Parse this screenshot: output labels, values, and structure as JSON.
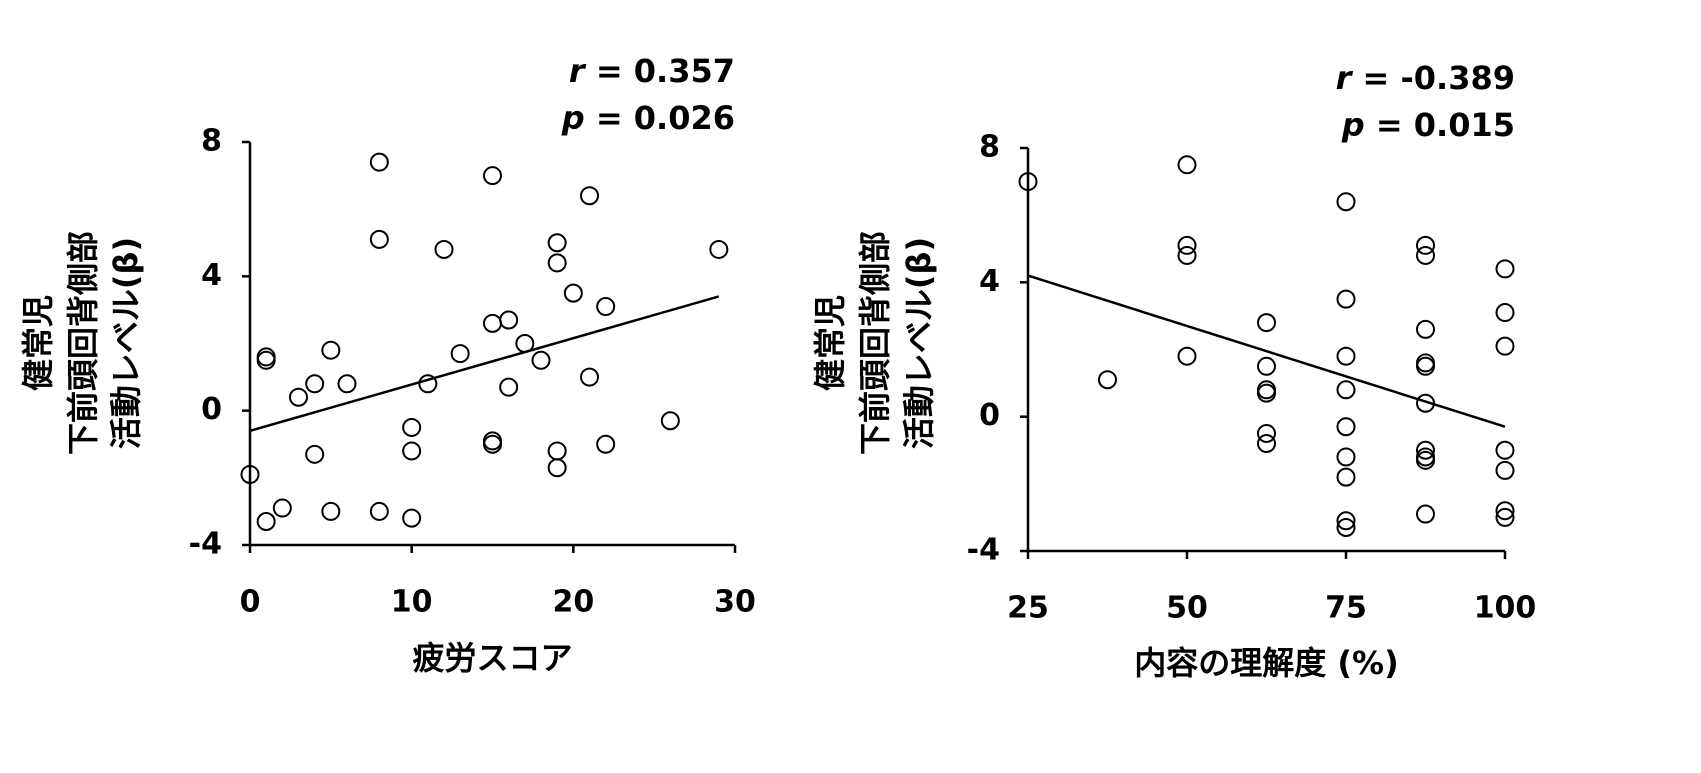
{
  "chart_data": [
    {
      "type": "scatter",
      "y_label": [
        "健常児",
        "下前頭回背側部",
        "活動レベル(β)"
      ],
      "x_label": "疲労スコア",
      "annotations": [
        {
          "var": "r",
          "text": " = 0.357"
        },
        {
          "var": "p",
          "text": " = 0.026"
        }
      ],
      "x": [
        0,
        1,
        1,
        1,
        2,
        3,
        4,
        4,
        5,
        5,
        6,
        8,
        8,
        8,
        10,
        10,
        10,
        11,
        12,
        13,
        15,
        15,
        15,
        15,
        16,
        16,
        17,
        18,
        19,
        19,
        19,
        19,
        20,
        21,
        21,
        22,
        22,
        26,
        29
      ],
      "values": [
        -1.9,
        -3.3,
        1.6,
        1.5,
        -2.9,
        0.4,
        0.8,
        -1.3,
        1.8,
        -3.0,
        0.8,
        7.4,
        5.1,
        -3.0,
        -0.5,
        -1.2,
        -3.2,
        0.8,
        4.8,
        1.7,
        7.0,
        2.6,
        -0.9,
        -1.0,
        2.7,
        0.7,
        2.0,
        1.5,
        5.0,
        4.4,
        -1.2,
        -1.7,
        3.5,
        6.4,
        1.0,
        3.1,
        -1.0,
        -0.3,
        4.8
      ],
      "color": "#000000",
      "trend_line": {
        "x": [
          0,
          29
        ],
        "y": [
          -0.6,
          3.4
        ]
      },
      "xlim": [
        0,
        30
      ],
      "xticks": [
        0,
        10,
        20,
        30
      ],
      "ylim": [
        -4,
        8
      ],
      "yticks": [
        -4,
        0,
        4,
        8
      ]
    },
    {
      "type": "scatter",
      "y_label": [
        "健常児",
        "下前頭回背側部",
        "活動レベル(β)"
      ],
      "x_label": "内容の理解度 (%)",
      "annotations": [
        {
          "var": "r",
          "text": " = -0.389"
        },
        {
          "var": "p",
          "text": " = 0.015"
        }
      ],
      "x": [
        25,
        37.5,
        50,
        50,
        50,
        50,
        62.5,
        62.5,
        62.5,
        62.5,
        62.5,
        62.5,
        75,
        75,
        75,
        75,
        75,
        75,
        75,
        75,
        75,
        87.5,
        87.5,
        87.5,
        87.5,
        87.5,
        87.5,
        87.5,
        87.5,
        87.5,
        87.5,
        100,
        100,
        100,
        100,
        100,
        100,
        100
      ],
      "values": [
        7.0,
        1.1,
        7.5,
        5.1,
        4.8,
        1.8,
        2.8,
        1.5,
        0.8,
        0.7,
        -0.5,
        -0.8,
        6.4,
        3.5,
        1.8,
        0.8,
        -0.3,
        -1.2,
        -1.8,
        -3.1,
        -3.3,
        5.1,
        4.8,
        2.6,
        1.6,
        1.5,
        0.4,
        -1.0,
        -1.2,
        -1.3,
        -2.9,
        4.4,
        3.1,
        2.1,
        -1.0,
        -1.6,
        -2.8,
        -3.0
      ],
      "color": "#000000",
      "trend_line": {
        "x": [
          25,
          100
        ],
        "y": [
          4.2,
          -0.3
        ]
      },
      "xlim": [
        25,
        100
      ],
      "xticks": [
        25,
        50,
        75,
        100
      ],
      "ylim": [
        -4,
        8
      ],
      "yticks": [
        -4,
        0,
        4,
        8
      ]
    }
  ]
}
